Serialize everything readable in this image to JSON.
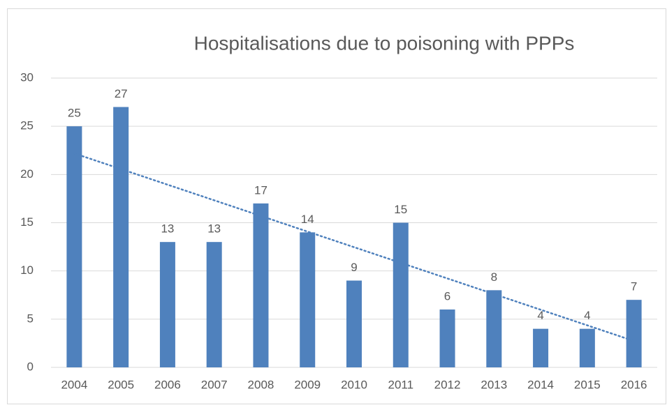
{
  "chart_data": {
    "type": "bar",
    "title": "Hospitalisations due to poisoning with PPPs",
    "categories": [
      "2004",
      "2005",
      "2006",
      "2007",
      "2008",
      "2009",
      "2010",
      "2011",
      "2012",
      "2013",
      "2014",
      "2015",
      "2016"
    ],
    "values": [
      25,
      27,
      13,
      13,
      17,
      14,
      9,
      15,
      6,
      8,
      4,
      4,
      7
    ],
    "color": "#4f81bd",
    "ylim": [
      0,
      30
    ],
    "yticks": [
      0,
      5,
      10,
      15,
      20,
      25,
      30
    ],
    "grid": true,
    "trendline": "linear"
  }
}
